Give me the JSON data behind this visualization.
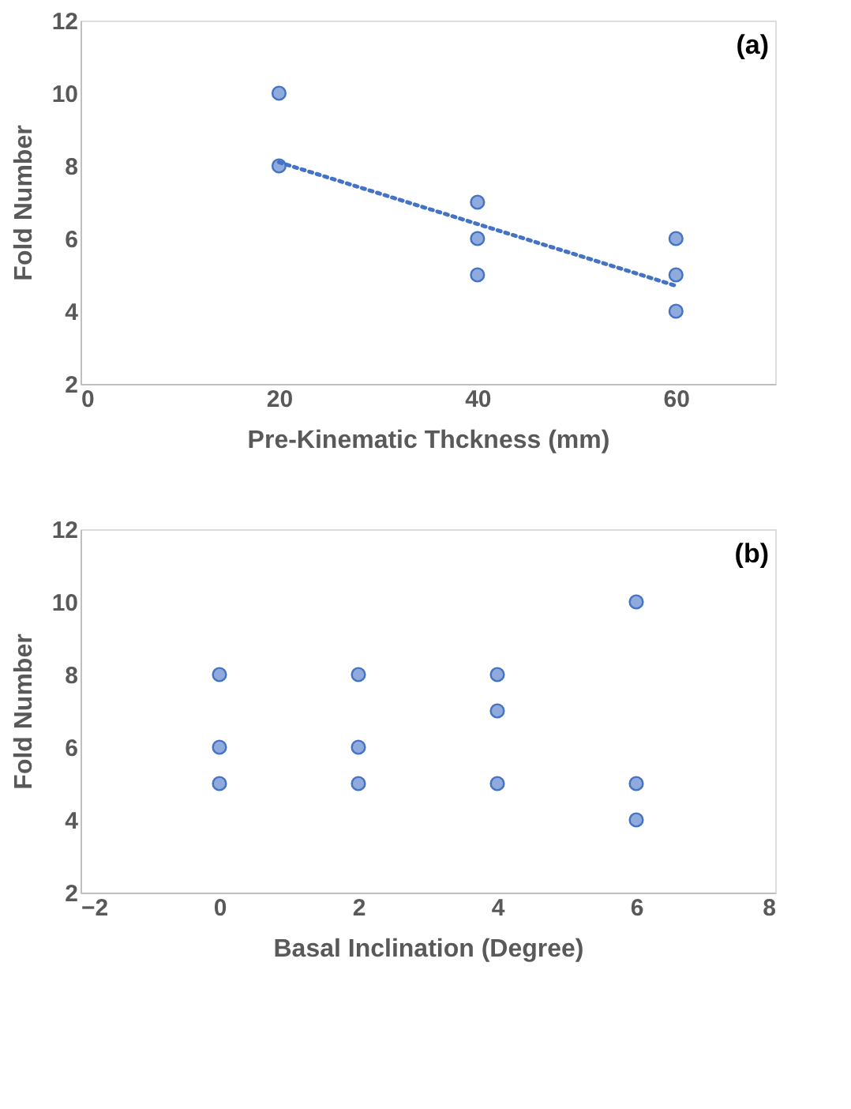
{
  "chart_data": [
    {
      "type": "scatter",
      "xlabel": "Pre-Kinematic Thckness (mm)",
      "ylabel": "Fold Number",
      "annotations": [
        "(a)"
      ],
      "xlim": [
        0,
        70
      ],
      "xticks": [
        0,
        20,
        40,
        60
      ],
      "ylim": [
        2,
        12
      ],
      "yticks": [
        2,
        4,
        6,
        8,
        10,
        12
      ],
      "grid": false,
      "legend": false,
      "marker": "circle",
      "series": [
        {
          "color": "#4472c4",
          "x": [
            20,
            20,
            40,
            40,
            40,
            60,
            60,
            60
          ],
          "values": [
            10,
            8,
            7,
            6,
            5,
            6,
            5,
            4
          ]
        },
        {
          "type": "line",
          "color": "#4472c4",
          "line_style": "dotted",
          "marker": "none",
          "x": [
            20,
            60
          ],
          "values": [
            8.1,
            4.7
          ]
        }
      ]
    },
    {
      "type": "scatter",
      "xlabel": "Basal Inclination (Degree)",
      "ylabel": "Fold Number",
      "annotations": [
        "(b)"
      ],
      "xlim": [
        -2,
        8
      ],
      "xticks": [
        -2,
        0,
        2,
        4,
        6,
        8
      ],
      "ylim": [
        2,
        12
      ],
      "yticks": [
        2,
        4,
        6,
        8,
        10,
        12
      ],
      "grid": false,
      "legend": false,
      "marker": "circle",
      "series": [
        {
          "color": "#4472c4",
          "x": [
            0,
            0,
            0,
            2,
            2,
            2,
            4,
            4,
            4,
            6,
            6,
            6
          ],
          "values": [
            8,
            6,
            5,
            8,
            6,
            5,
            8,
            7,
            5,
            10,
            5,
            4
          ]
        }
      ]
    }
  ]
}
